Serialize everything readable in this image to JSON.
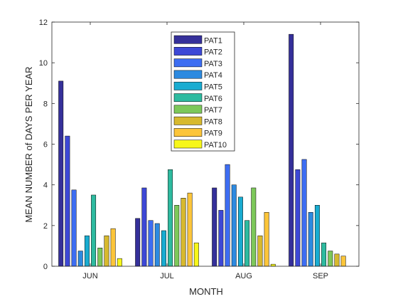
{
  "chart_data": {
    "type": "bar",
    "xlabel": "MONTH",
    "ylabel": "MEAN NUMBER of DAYS PER YEAR",
    "ylim": [
      0,
      12
    ],
    "yticks": [
      "0",
      "2",
      "4",
      "6",
      "8",
      "10",
      "12"
    ],
    "categories": [
      "JUN",
      "JUL",
      "AUG",
      "SEP"
    ],
    "legend_position": "top-center",
    "grid": false,
    "series": [
      {
        "name": "PAT1",
        "color": "#35309A",
        "values": [
          9.1,
          2.35,
          3.85,
          11.4
        ]
      },
      {
        "name": "PAT2",
        "color": "#3D48D6",
        "values": [
          6.4,
          3.85,
          2.75,
          4.75
        ]
      },
      {
        "name": "PAT3",
        "color": "#3D6DF2",
        "values": [
          3.75,
          2.25,
          5.0,
          5.25
        ]
      },
      {
        "name": "PAT4",
        "color": "#2D8AE0",
        "values": [
          0.75,
          2.1,
          4.0,
          2.65
        ]
      },
      {
        "name": "PAT5",
        "color": "#19ACD1",
        "values": [
          1.5,
          1.75,
          3.4,
          3.0
        ]
      },
      {
        "name": "PAT6",
        "color": "#2EBBA0",
        "values": [
          3.5,
          4.75,
          2.25,
          1.15
        ]
      },
      {
        "name": "PAT7",
        "color": "#7DC85A",
        "values": [
          0.9,
          3.0,
          3.85,
          0.75
        ]
      },
      {
        "name": "PAT8",
        "color": "#D7B92E",
        "values": [
          1.5,
          3.35,
          1.5,
          0.6
        ]
      },
      {
        "name": "PAT9",
        "color": "#FCC53A",
        "values": [
          1.85,
          3.6,
          2.65,
          0.5
        ]
      },
      {
        "name": "PAT10",
        "color": "#F7F71A",
        "values": [
          0.38,
          1.15,
          0.1,
          0
        ]
      }
    ]
  }
}
